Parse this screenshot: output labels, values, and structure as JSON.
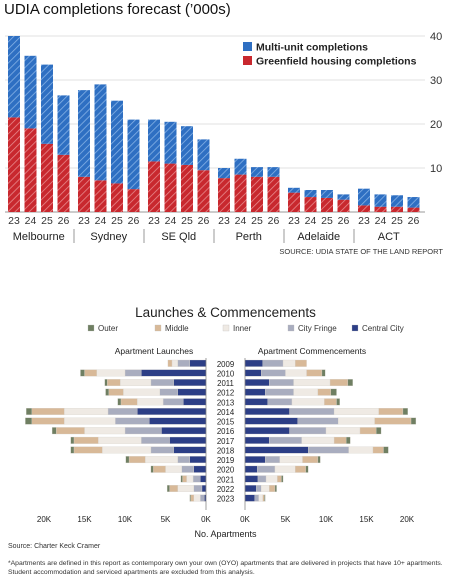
{
  "chart_data": [
    {
      "type": "bar",
      "title": "UDIA completions forecast (’000s)",
      "source": "SOURCE: UDIA STATE OF THE LAND REPORT",
      "colors": {
        "multi": "#2e6fc2",
        "greenfield": "#c8282e",
        "grid": "#d8d8d8"
      },
      "yticks": [
        10,
        20,
        30,
        40
      ],
      "ylim": [
        0,
        42
      ],
      "legend_position": "top-right",
      "series": [
        {
          "name": "Multi-unit completions",
          "color": "#2e6fc2"
        },
        {
          "name": "Greenfield housing completions",
          "color": "#c8282e"
        }
      ],
      "groups": [
        {
          "name": "Melbourne",
          "years": [
            "23",
            "24",
            "25",
            "26"
          ],
          "greenfield": [
            21.5,
            19,
            15.5,
            13
          ],
          "multi": [
            18.5,
            16.5,
            18,
            13.5
          ]
        },
        {
          "name": "Sydney",
          "years": [
            "23",
            "24",
            "25",
            "26"
          ],
          "greenfield": [
            8,
            7.2,
            6.5,
            5.2
          ],
          "multi": [
            19.7,
            21.8,
            18.8,
            15.8
          ]
        },
        {
          "name": "SE Qld",
          "years": [
            "23",
            "24",
            "25",
            "26"
          ],
          "greenfield": [
            11.5,
            11,
            10.7,
            9.5
          ],
          "multi": [
            9.5,
            9.5,
            8.8,
            7
          ]
        },
        {
          "name": "Perth",
          "years": [
            "23",
            "24",
            "25",
            "26"
          ],
          "greenfield": [
            7.7,
            8.5,
            8,
            8
          ],
          "multi": [
            2.3,
            3.6,
            2.2,
            2.2
          ]
        },
        {
          "name": "Adelaide",
          "years": [
            "23",
            "24",
            "25",
            "26"
          ],
          "greenfield": [
            4.4,
            3.4,
            3.2,
            2.8
          ],
          "multi": [
            1.1,
            1.6,
            1.8,
            1.2
          ]
        },
        {
          "name": "ACT",
          "years": [
            "23",
            "24",
            "25",
            "26"
          ],
          "greenfield": [
            1.5,
            1.2,
            1.2,
            1.0
          ],
          "multi": [
            3.8,
            2.8,
            2.6,
            2.4
          ]
        }
      ]
    },
    {
      "type": "bar",
      "orientation": "horizontal-diverging",
      "title": "Launches & Commencements",
      "left_title": "Apartment Launches",
      "right_title": "Apartment Commencements",
      "xlabel": "No. Apartments",
      "xticks_left": [
        "20K",
        "15K",
        "10K",
        "5K",
        "0K"
      ],
      "xticks_right": [
        "0K",
        "5K",
        "10K",
        "15K",
        "20K"
      ],
      "xlim": [
        0,
        22000
      ],
      "legend_position": "top",
      "series": [
        {
          "name": "Outer",
          "color": "#6f7f62"
        },
        {
          "name": "Middle",
          "color": "#d8b998"
        },
        {
          "name": "Inner",
          "color": "#efeae4"
        },
        {
          "name": "City Fringe",
          "color": "#a9adbf"
        },
        {
          "name": "Central City",
          "color": "#2c3e86"
        }
      ],
      "years": [
        "2009",
        "2010",
        "2011",
        "2012",
        "2013",
        "2014",
        "2015",
        "2016",
        "2017",
        "2018",
        "2019",
        "2020",
        "2021",
        "2022",
        "2023"
      ],
      "launches": [
        [
          0,
          500,
          700,
          1500,
          2000
        ],
        [
          500,
          1500,
          3500,
          2000,
          8000
        ],
        [
          300,
          1600,
          3800,
          2800,
          4000
        ],
        [
          400,
          1800,
          4500,
          2200,
          3500
        ],
        [
          400,
          2000,
          3200,
          2500,
          2800
        ],
        [
          700,
          4000,
          5400,
          3600,
          8500
        ],
        [
          800,
          4000,
          6300,
          4200,
          7000
        ],
        [
          500,
          3500,
          5000,
          4500,
          5500
        ],
        [
          400,
          3000,
          5300,
          3500,
          4500
        ],
        [
          400,
          3500,
          6000,
          2800,
          4000
        ],
        [
          400,
          2000,
          4000,
          1500,
          2000
        ],
        [
          300,
          1500,
          2000,
          1500,
          1500
        ],
        [
          200,
          500,
          800,
          900,
          700
        ],
        [
          300,
          1000,
          2000,
          1000,
          500
        ],
        [
          100,
          400,
          800,
          500,
          200
        ]
      ],
      "commencements": [
        [
          0,
          1400,
          1500,
          2500,
          2200
        ],
        [
          400,
          1900,
          2600,
          3000,
          2000
        ],
        [
          600,
          2200,
          4500,
          3000,
          3000
        ],
        [
          700,
          1600,
          3000,
          3500,
          2500
        ],
        [
          400,
          1500,
          4000,
          3000,
          2800
        ],
        [
          600,
          3000,
          5500,
          5500,
          5500
        ],
        [
          600,
          4500,
          4500,
          5000,
          6500
        ],
        [
          600,
          2000,
          4200,
          4500,
          5500
        ],
        [
          500,
          1500,
          4000,
          4000,
          3000
        ],
        [
          600,
          1300,
          3000,
          5000,
          7800
        ],
        [
          300,
          1900,
          2800,
          1800,
          2500
        ],
        [
          300,
          1300,
          2500,
          2200,
          1500
        ],
        [
          200,
          500,
          1400,
          1000,
          1600
        ],
        [
          200,
          700,
          1000,
          600,
          1400
        ],
        [
          100,
          200,
          500,
          500,
          1200
        ]
      ],
      "source": "Source: Charter Keck Cramer",
      "footnote": "*Apartments are defined in this report as contemporary own your own (OYO) apartments that are delivered in projects that have 10+ apartments. Student accommodation and serviced apartments are excluded from this analysis."
    }
  ]
}
